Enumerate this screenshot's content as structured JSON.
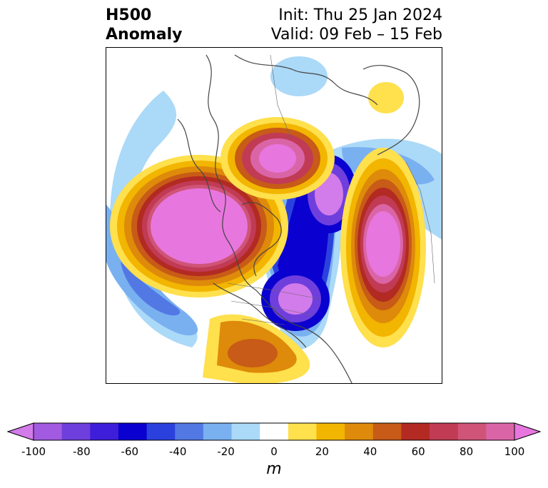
{
  "header": {
    "title_line1": "H500",
    "title_line2": "Anomaly",
    "init_text": "Init: Thu 25 Jan 2024",
    "valid_text": "Valid: 09 Feb – 15 Feb"
  },
  "colorbar": {
    "ticks": [
      "-100",
      "-80",
      "-60",
      "-40",
      "-20",
      "0",
      "20",
      "40",
      "60",
      "80",
      "100"
    ],
    "unit": "m",
    "colors": [
      "#d27bea",
      "#a25ae0",
      "#6e3fdc",
      "#3e1ed8",
      "#0a00cf",
      "#2b41dd",
      "#5278e4",
      "#79b0f0",
      "#abd9f8",
      "#ffffff",
      "#ffe04d",
      "#f2b500",
      "#de8a0a",
      "#c75b17",
      "#b22a22",
      "#c13b55",
      "#cf5477",
      "#da65a6",
      "#e876df"
    ]
  }
}
